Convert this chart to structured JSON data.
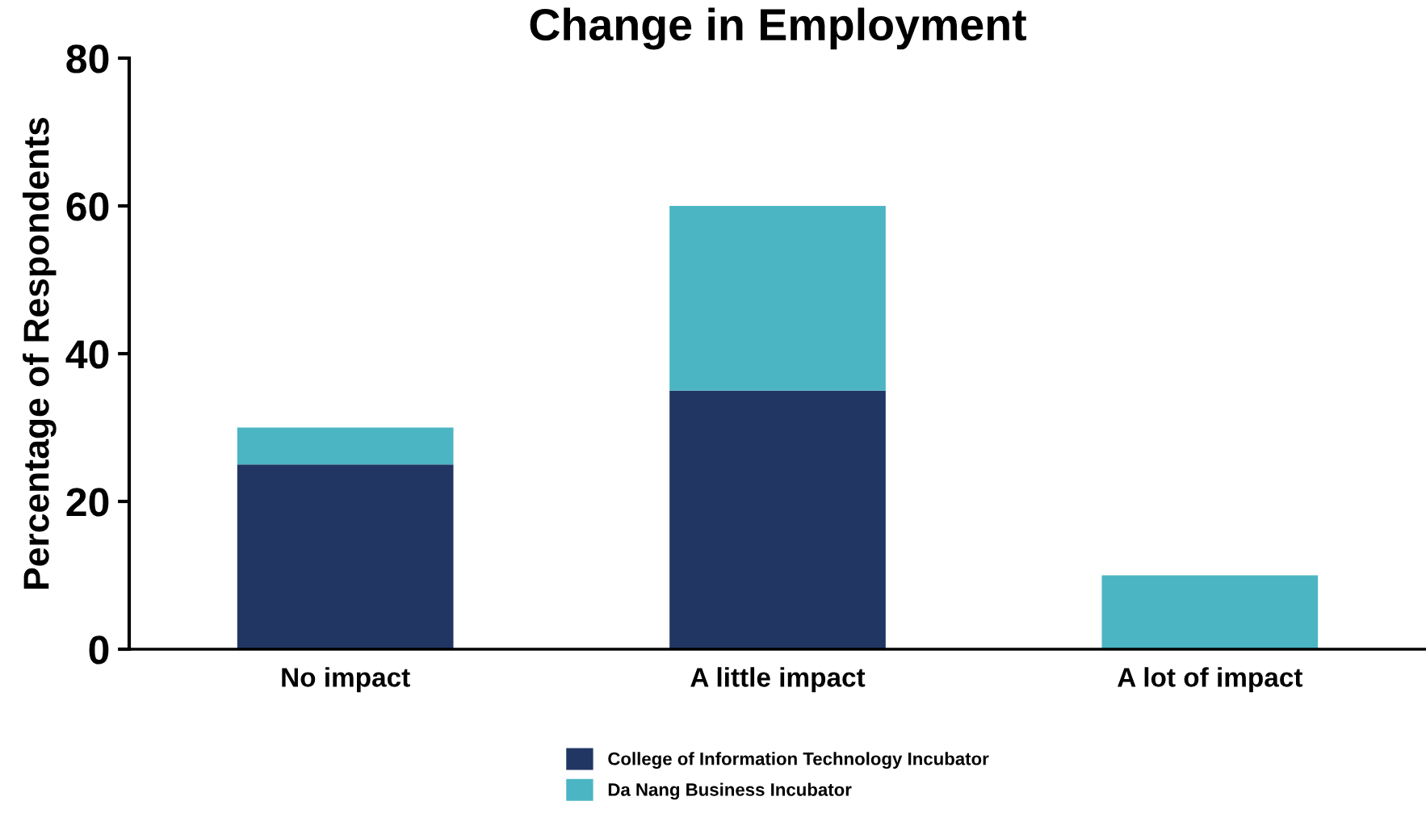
{
  "chart_data": {
    "type": "bar",
    "title": "Change in Employment",
    "ylabel": "Percentage of Respondents",
    "categories": [
      "No impact",
      "A little impact",
      "A lot of impact"
    ],
    "stacked": true,
    "series": [
      {
        "name": "College of Information Technology Incubator",
        "color": "#213663",
        "values": [
          25,
          35,
          0
        ]
      },
      {
        "name": "Da Nang Business Incubator",
        "color": "#4bb5c4",
        "values": [
          5,
          25,
          10
        ]
      }
    ],
    "ylim": [
      0,
      80
    ],
    "yticks": [
      0,
      20,
      40,
      60,
      80
    ],
    "grid": false,
    "legend": "bottom"
  }
}
